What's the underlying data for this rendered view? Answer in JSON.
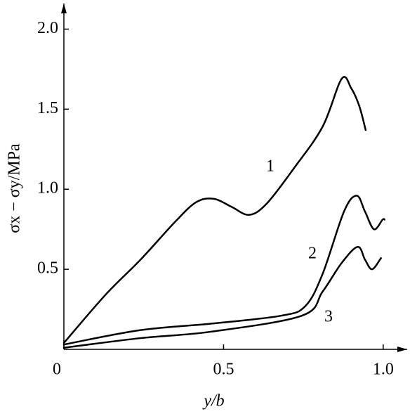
{
  "chart_data": {
    "type": "line",
    "x_label": "y/b",
    "y_label": "σx − σy/MPa",
    "xlim": [
      0,
      1.075
    ],
    "ylim": [
      0,
      2.16
    ],
    "xticks": [
      0,
      0.5,
      {
        "value": 1,
        "label": "1.0"
      }
    ],
    "yticks": [
      0.5,
      {
        "value": 1,
        "label": "1.0"
      },
      1.5,
      {
        "value": 2,
        "label": "2.0"
      }
    ],
    "grid": false,
    "series": [
      {
        "name": "1",
        "color": "#000000",
        "x": [
          0,
          0.13,
          0.24,
          0.35,
          0.415,
          0.47,
          0.525,
          0.58,
          0.635,
          0.72,
          0.81,
          0.87,
          0.9,
          0.925,
          0.945
        ],
        "values": [
          0.04,
          0.34,
          0.56,
          0.8,
          0.92,
          0.94,
          0.89,
          0.84,
          0.91,
          1.13,
          1.39,
          1.69,
          1.63,
          1.52,
          1.37
        ]
      },
      {
        "name": "2",
        "color": "#000000",
        "x": [
          0,
          0.24,
          0.46,
          0.68,
          0.756,
          0.81,
          0.877,
          0.917,
          0.943,
          0.971,
          0.998,
          1.004
        ],
        "values": [
          0.03,
          0.12,
          0.16,
          0.21,
          0.27,
          0.47,
          0.86,
          0.96,
          0.86,
          0.75,
          0.81,
          0.81
        ]
      },
      {
        "name": "3",
        "color": "#000000",
        "x": [
          0,
          0.24,
          0.46,
          0.745,
          0.81,
          0.87,
          0.92,
          0.943,
          0.965,
          0.993
        ],
        "values": [
          0.01,
          0.07,
          0.11,
          0.21,
          0.36,
          0.54,
          0.64,
          0.56,
          0.5,
          0.57
        ]
      }
    ]
  }
}
